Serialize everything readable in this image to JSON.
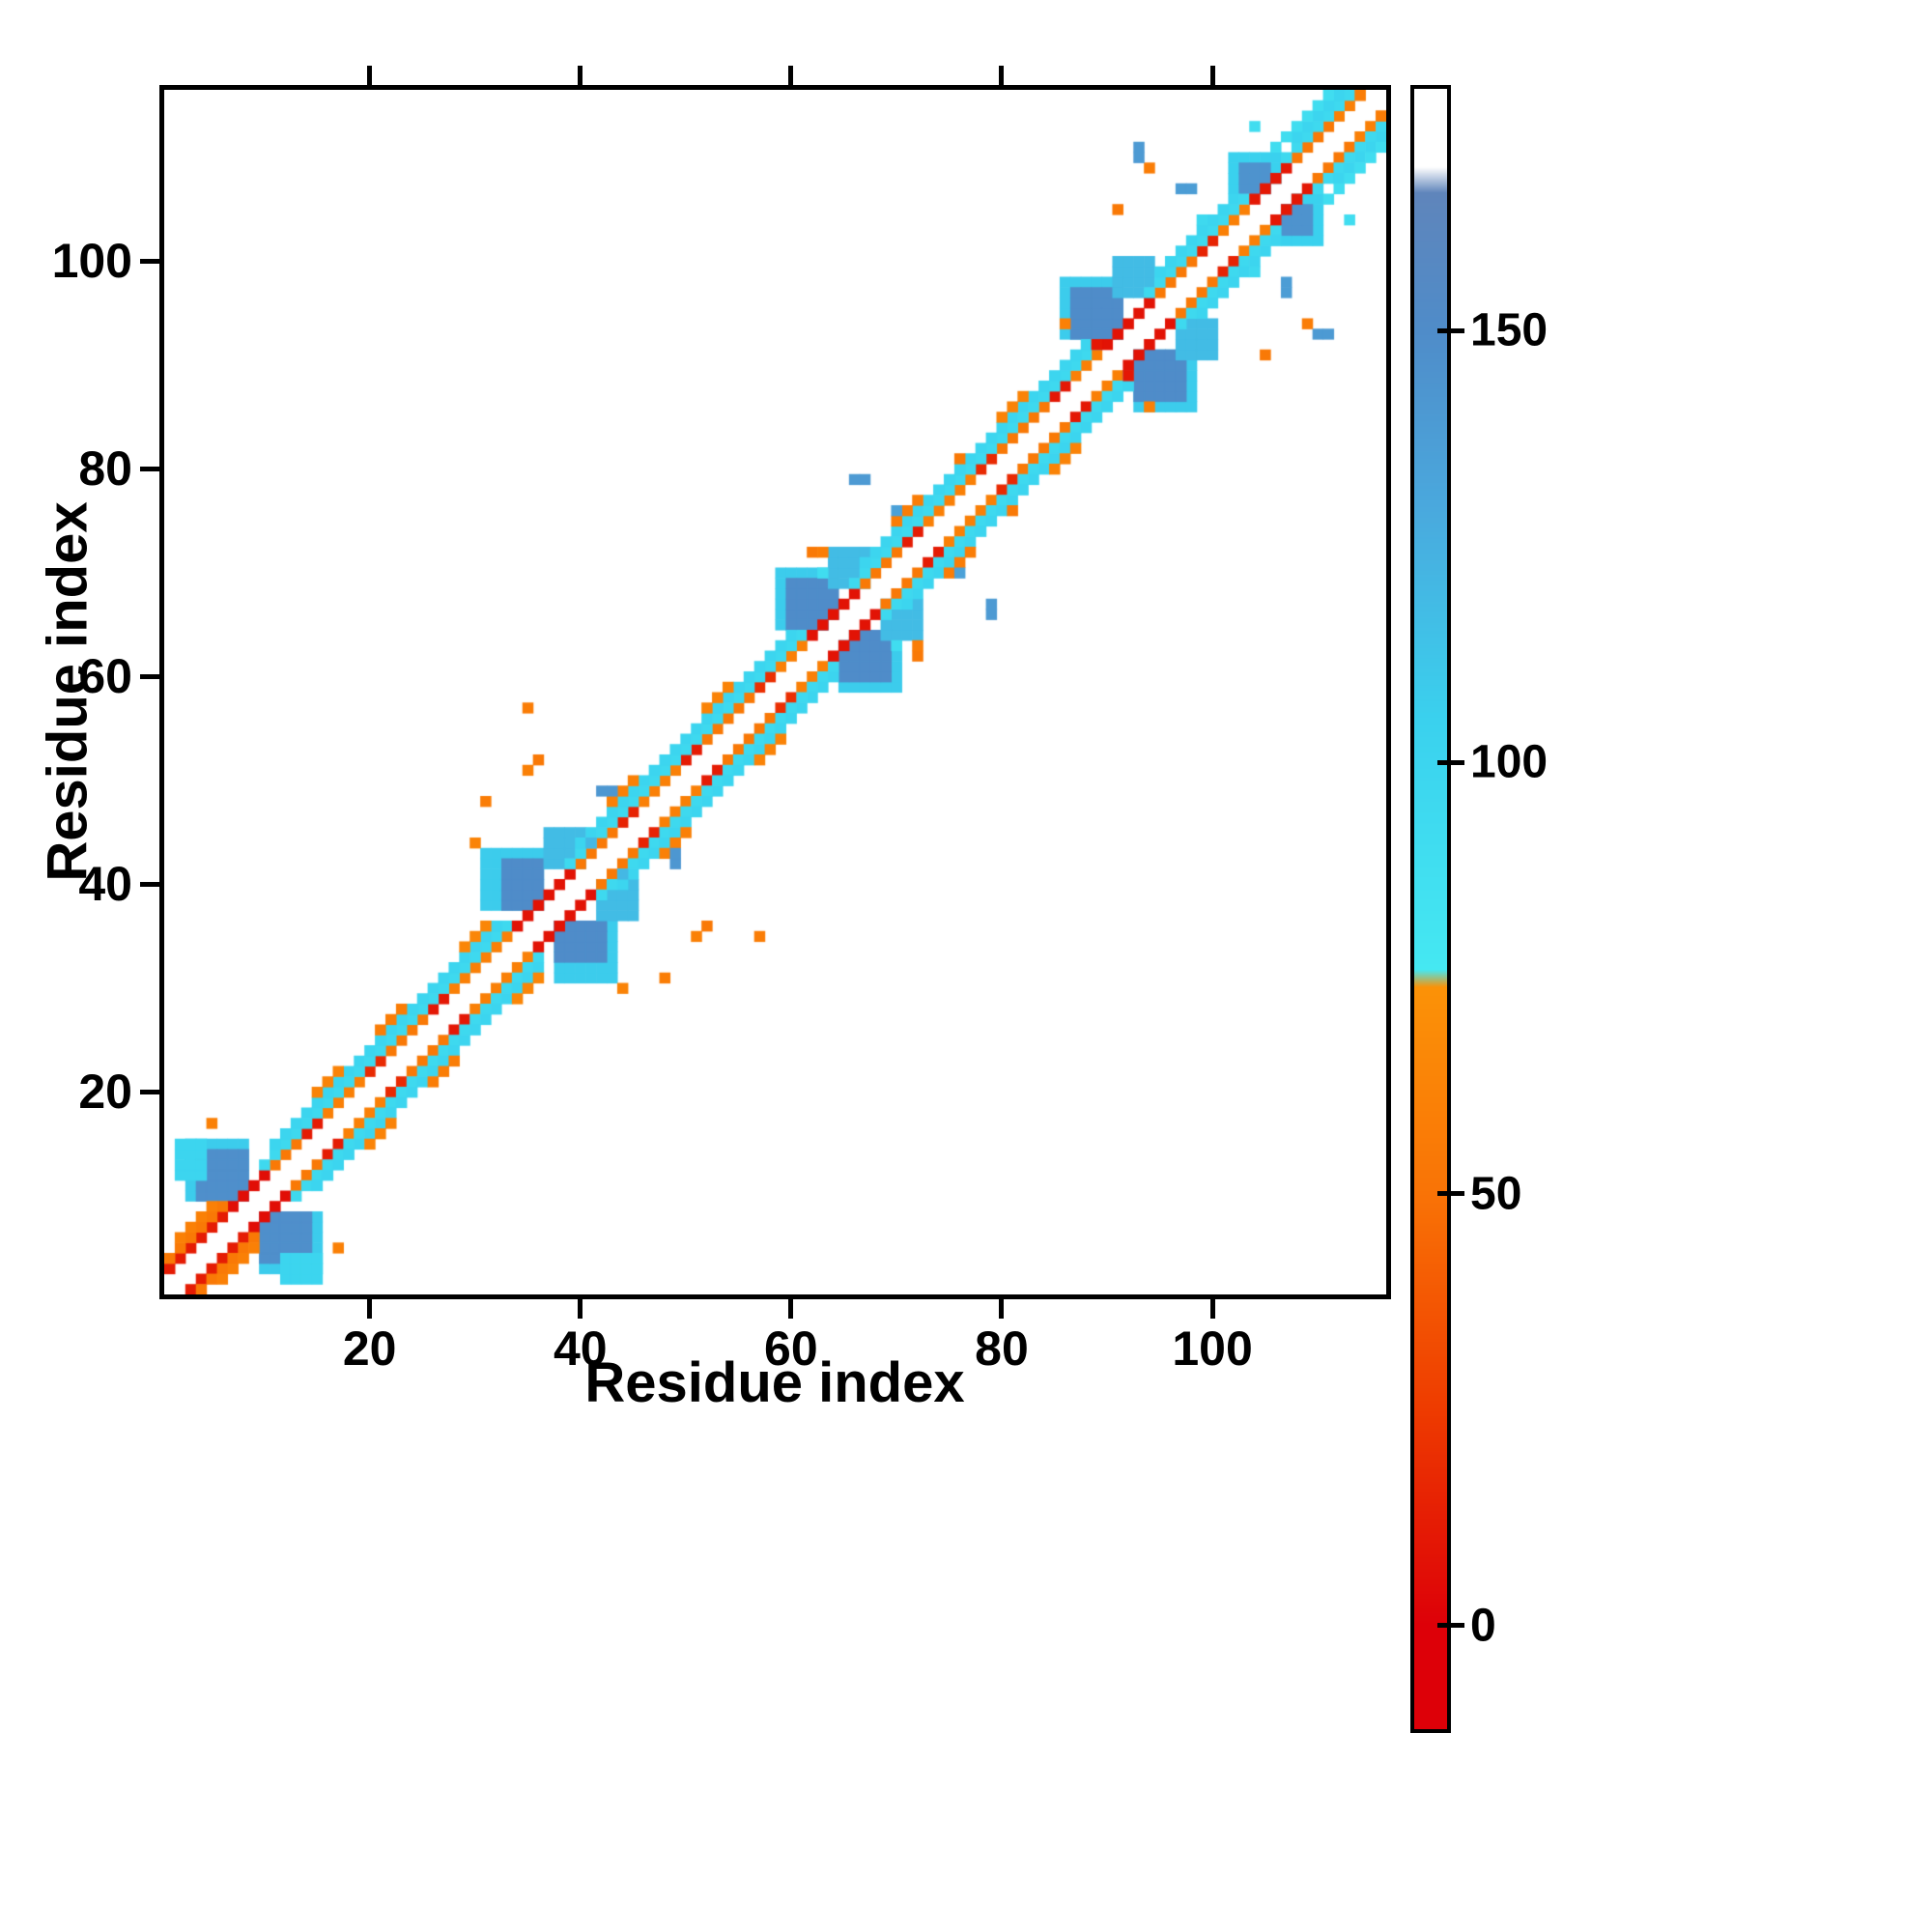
{
  "chart_data": {
    "type": "heatmap",
    "title": "",
    "xlabel": "Residue index",
    "ylabel": "Residue index",
    "x_range": [
      1,
      116
    ],
    "y_range": [
      1,
      116
    ],
    "x_ticks": [
      20,
      40,
      60,
      80,
      100
    ],
    "y_ticks": [
      20,
      40,
      60,
      80,
      100
    ],
    "symmetric": true,
    "background": "#ffffff",
    "frame_color": "#000000",
    "colorbar": {
      "ticks": [
        0,
        50,
        100,
        150
      ],
      "range": [
        -12,
        178
      ],
      "stops": [
        [
          0,
          "#dd0008"
        ],
        [
          25,
          "#ee3b00"
        ],
        [
          50,
          "#f97306"
        ],
        [
          74,
          "#fb9207"
        ],
        [
          76,
          "#45e8f2"
        ],
        [
          105,
          "#3ad1ee"
        ],
        [
          130,
          "#4aa8dd"
        ],
        [
          150,
          "#4f8cc9"
        ],
        [
          166,
          "#5f85bb"
        ],
        [
          169,
          "#ffffff"
        ],
        [
          180,
          "#ffffff"
        ]
      ]
    },
    "bands": [
      [
        1,
        6,
        2,
        12
      ],
      [
        7,
        10,
        2,
        6
      ],
      [
        1,
        6,
        3,
        55
      ],
      [
        2,
        5,
        4,
        60
      ],
      [
        11,
        13,
        2,
        55
      ],
      [
        14,
        15,
        2,
        12
      ],
      [
        16,
        19,
        2,
        60
      ],
      [
        20,
        21,
        2,
        18
      ],
      [
        22,
        25,
        2,
        55
      ],
      [
        26,
        27,
        2,
        10
      ],
      [
        28,
        33,
        2,
        60
      ],
      [
        10,
        33,
        3,
        95
      ],
      [
        11,
        32,
        4,
        100
      ],
      [
        15,
        17,
        5,
        62
      ],
      [
        21,
        23,
        5,
        58
      ],
      [
        29,
        31,
        5,
        65
      ],
      [
        34,
        39,
        2,
        8
      ],
      [
        40,
        43,
        2,
        55
      ],
      [
        44,
        45,
        2,
        15
      ],
      [
        46,
        49,
        2,
        60
      ],
      [
        50,
        51,
        2,
        12
      ],
      [
        52,
        56,
        2,
        55
      ],
      [
        57,
        58,
        2,
        20
      ],
      [
        59,
        61,
        2,
        60
      ],
      [
        39,
        61,
        3,
        95
      ],
      [
        40,
        60,
        4,
        100
      ],
      [
        43,
        45,
        5,
        60
      ],
      [
        52,
        54,
        5,
        62
      ],
      [
        62,
        66,
        2,
        8
      ],
      [
        67,
        70,
        2,
        55
      ],
      [
        71,
        72,
        2,
        12
      ],
      [
        73,
        77,
        2,
        60
      ],
      [
        78,
        79,
        2,
        18
      ],
      [
        80,
        84,
        2,
        55
      ],
      [
        85,
        86,
        2,
        10
      ],
      [
        87,
        89,
        2,
        60
      ],
      [
        66,
        89,
        3,
        95
      ],
      [
        67,
        88,
        4,
        100
      ],
      [
        70,
        72,
        5,
        58
      ],
      [
        80,
        82,
        5,
        62
      ],
      [
        90,
        94,
        2,
        8
      ],
      [
        95,
        98,
        2,
        55
      ],
      [
        99,
        100,
        2,
        15
      ],
      [
        101,
        103,
        2,
        60
      ],
      [
        94,
        103,
        3,
        95
      ],
      [
        95,
        102,
        4,
        100
      ],
      [
        104,
        107,
        2,
        10
      ],
      [
        108,
        111,
        2,
        55
      ],
      [
        112,
        114,
        2,
        60
      ],
      [
        107,
        113,
        3,
        95
      ],
      [
        108,
        112,
        4,
        100
      ],
      [
        106,
        112,
        5,
        90
      ]
    ],
    "blocks": [
      [
        3,
        8,
        10,
        15,
        108
      ],
      [
        4,
        8,
        10,
        14,
        148
      ],
      [
        2,
        4,
        12,
        15,
        100
      ],
      [
        31,
        36,
        38,
        43,
        108
      ],
      [
        33,
        36,
        38,
        42,
        150
      ],
      [
        37,
        40,
        42,
        45,
        118
      ],
      [
        59,
        63,
        65,
        70,
        108
      ],
      [
        60,
        64,
        65,
        69,
        150
      ],
      [
        64,
        67,
        69,
        72,
        118
      ],
      [
        86,
        91,
        93,
        98,
        108
      ],
      [
        87,
        91,
        93,
        97,
        150
      ],
      [
        91,
        94,
        97,
        100,
        118
      ],
      [
        102,
        106,
        107,
        110,
        105
      ],
      [
        103,
        105,
        107,
        109,
        145
      ]
    ],
    "points": [
      [
        5,
        17,
        60
      ],
      [
        30,
        44,
        62
      ],
      [
        31,
        48,
        58
      ],
      [
        35,
        51,
        60
      ],
      [
        35,
        57,
        58
      ],
      [
        36,
        52,
        55
      ],
      [
        42,
        49,
        142
      ],
      [
        43,
        49,
        142
      ],
      [
        41,
        44,
        120
      ],
      [
        62,
        72,
        55
      ],
      [
        63,
        72,
        58
      ],
      [
        66,
        79,
        140
      ],
      [
        67,
        79,
        140
      ],
      [
        70,
        76,
        135
      ],
      [
        76,
        81,
        55
      ],
      [
        63,
        70,
        90
      ],
      [
        91,
        105,
        55
      ],
      [
        94,
        109,
        58
      ],
      [
        93,
        110,
        140
      ],
      [
        93,
        111,
        140
      ],
      [
        99,
        104,
        95
      ],
      [
        97,
        107,
        138
      ],
      [
        98,
        107,
        138
      ],
      [
        89,
        92,
        10
      ],
      [
        114,
        116,
        58
      ],
      [
        104,
        113,
        90
      ],
      [
        86,
        94,
        60
      ]
    ]
  }
}
